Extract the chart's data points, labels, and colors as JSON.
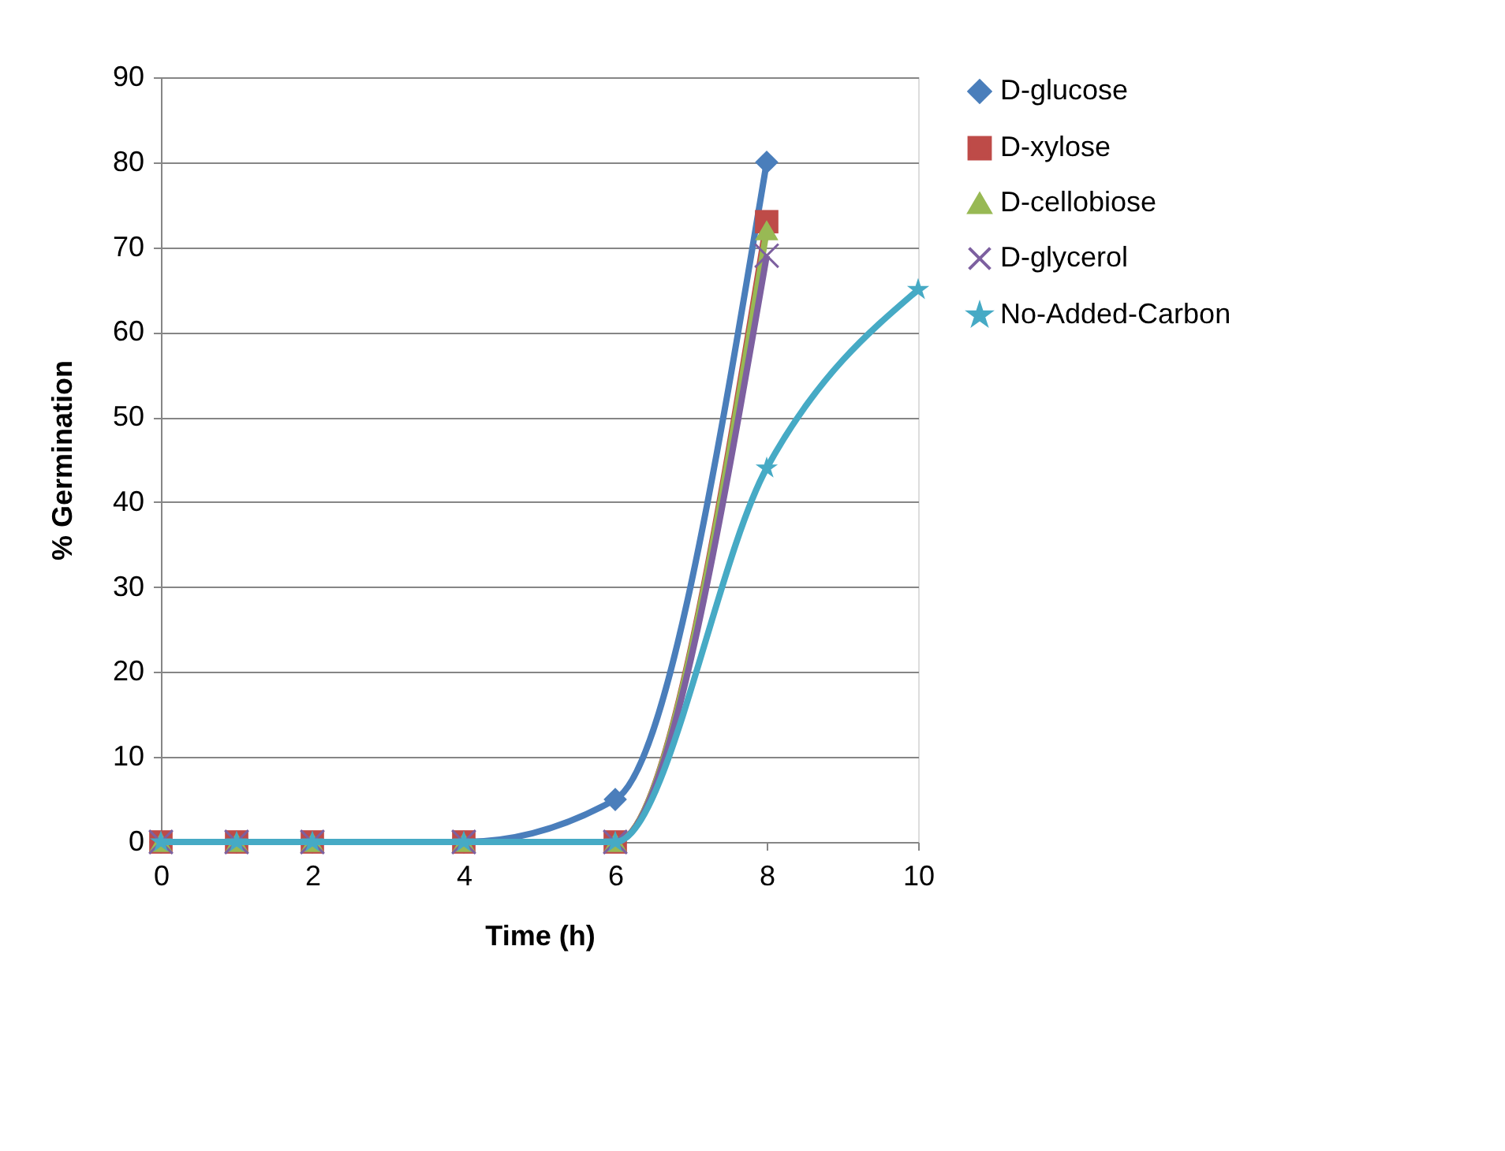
{
  "chart_data": {
    "type": "line",
    "xlabel": "Time (h)",
    "ylabel": "% Germination",
    "xlim": [
      0,
      10
    ],
    "xticks": [
      0,
      2,
      4,
      6,
      8,
      10
    ],
    "ylim": [
      0,
      90
    ],
    "yticks": [
      0,
      10,
      20,
      30,
      40,
      50,
      60,
      70,
      80,
      90
    ],
    "grid": "y",
    "legend": "right",
    "line_style": "solid",
    "series": [
      {
        "name": "D-glucose",
        "color": "#4a7ebb",
        "marker": "diamond",
        "x": [
          0,
          1,
          2,
          4,
          6,
          8
        ],
        "values": [
          0,
          0,
          0,
          0,
          5,
          80
        ]
      },
      {
        "name": "D-xylose",
        "color": "#be4b48",
        "marker": "square",
        "x": [
          0,
          1,
          2,
          4,
          6,
          8
        ],
        "values": [
          0,
          0,
          0,
          0,
          0,
          73
        ]
      },
      {
        "name": "D-cellobiose",
        "color": "#98b954",
        "marker": "triangle",
        "x": [
          0,
          1,
          2,
          4,
          6,
          8
        ],
        "values": [
          0,
          0,
          0,
          0,
          0,
          72
        ]
      },
      {
        "name": "D-glycerol",
        "color": "#7d60a0",
        "marker": "cross",
        "x": [
          0,
          1,
          2,
          4,
          6,
          8
        ],
        "values": [
          0,
          0,
          0,
          0,
          0,
          69
        ]
      },
      {
        "name": "No-Added-Carbon",
        "color": "#46aac5",
        "marker": "star",
        "x": [
          0,
          1,
          2,
          4,
          6,
          8,
          10
        ],
        "values": [
          0,
          0,
          0,
          0,
          0,
          44,
          65
        ]
      }
    ]
  }
}
